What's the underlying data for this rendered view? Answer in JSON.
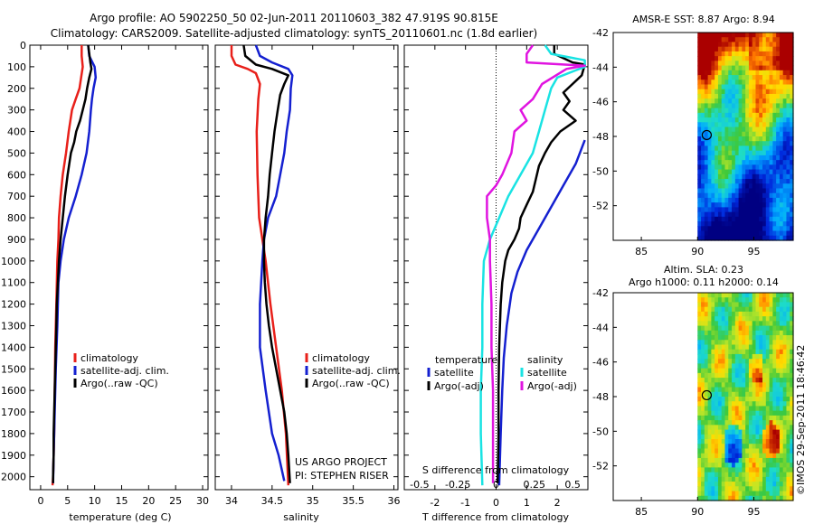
{
  "header": {
    "line1": "Argo profile: AO 5902250_50 02-Jun-2011 20110603_382 47.919S 90.815E",
    "line2": "Climatology: CARS2009. Satellite-adjusted climatology: synTS_20110601.nc (1.8d earlier)"
  },
  "colors": {
    "climatology": "#e8201a",
    "satellite": "#1420d0",
    "argo": "#000000",
    "sat_diff": "#19e3e3",
    "argo_diff": "#e014e0"
  },
  "chart_data": [
    {
      "type": "line",
      "id": "temperature",
      "xlabel": "temperature (deg C)",
      "xlim": [
        -2,
        31
      ],
      "ylim": [
        2060,
        0
      ],
      "xticks": [
        0,
        5,
        10,
        15,
        20,
        25,
        30
      ],
      "xtick_labels": [
        "0",
        "5",
        "10",
        "15",
        "20",
        "25",
        "30"
      ],
      "yticks": [
        0,
        100,
        200,
        300,
        400,
        500,
        600,
        700,
        800,
        900,
        1000,
        1100,
        1200,
        1300,
        1400,
        1500,
        1600,
        1700,
        1800,
        1900,
        2000
      ],
      "ytick_labels": [
        "0",
        "100",
        "200",
        "300",
        "400",
        "500",
        "600",
        "700",
        "800",
        "900",
        "1000",
        "1100",
        "1200",
        "1300",
        "1400",
        "1500",
        "1600",
        "1700",
        "1800",
        "1900",
        "2000"
      ],
      "legend": [
        "climatology",
        "satellite-adj. clim.",
        "Argo(..raw -QC)"
      ],
      "series": [
        {
          "name": "climatology",
          "color_key": "climatology",
          "points": [
            [
              7.6,
              0
            ],
            [
              7.6,
              50
            ],
            [
              7.8,
              100
            ],
            [
              7.5,
              150
            ],
            [
              7.2,
              200
            ],
            [
              6.5,
              250
            ],
            [
              5.8,
              300
            ],
            [
              5.2,
              400
            ],
            [
              4.7,
              500
            ],
            [
              4.1,
              600
            ],
            [
              3.7,
              700
            ],
            [
              3.4,
              800
            ],
            [
              3.3,
              900
            ],
            [
              3.1,
              1000
            ],
            [
              2.9,
              1200
            ],
            [
              2.7,
              1400
            ],
            [
              2.6,
              1600
            ],
            [
              2.5,
              1800
            ],
            [
              2.3,
              2000
            ],
            [
              2.2,
              2040
            ]
          ]
        },
        {
          "name": "satellite-adj. clim.",
          "color_key": "satellite",
          "points": [
            [
              8.8,
              0
            ],
            [
              9.0,
              50
            ],
            [
              10.0,
              100
            ],
            [
              10.2,
              150
            ],
            [
              9.8,
              200
            ],
            [
              9.5,
              250
            ],
            [
              9.3,
              300
            ],
            [
              9.0,
              400
            ],
            [
              8.5,
              500
            ],
            [
              7.6,
              600
            ],
            [
              6.5,
              700
            ],
            [
              5.2,
              800
            ],
            [
              4.3,
              900
            ],
            [
              3.7,
              1000
            ],
            [
              3.3,
              1100
            ],
            [
              3.1,
              1300
            ],
            [
              2.8,
              1500
            ],
            [
              2.6,
              1700
            ],
            [
              2.4,
              1900
            ],
            [
              2.3,
              2030
            ]
          ]
        },
        {
          "name": "Argo(..raw -QC)",
          "color_key": "argo",
          "points": [
            [
              8.8,
              0
            ],
            [
              9.0,
              40
            ],
            [
              9.2,
              80
            ],
            [
              9.4,
              110
            ],
            [
              9.0,
              150
            ],
            [
              8.6,
              200
            ],
            [
              8.3,
              250
            ],
            [
              7.8,
              300
            ],
            [
              7.3,
              350
            ],
            [
              6.6,
              400
            ],
            [
              6.2,
              450
            ],
            [
              5.6,
              500
            ],
            [
              5.0,
              600
            ],
            [
              4.5,
              700
            ],
            [
              4.1,
              800
            ],
            [
              3.7,
              900
            ],
            [
              3.4,
              1000
            ],
            [
              3.2,
              1100
            ],
            [
              3.0,
              1200
            ],
            [
              2.9,
              1300
            ],
            [
              2.8,
              1400
            ],
            [
              2.7,
              1500
            ],
            [
              2.6,
              1600
            ],
            [
              2.5,
              1700
            ],
            [
              2.4,
              1800
            ],
            [
              2.4,
              1900
            ],
            [
              2.3,
              2000
            ],
            [
              2.3,
              2030
            ]
          ]
        }
      ]
    },
    {
      "type": "line",
      "id": "salinity",
      "xlabel": "salinity",
      "xlim": [
        33.8,
        36.05
      ],
      "ylim": [
        2060,
        0
      ],
      "xticks": [
        34,
        34.5,
        35,
        35.5,
        36
      ],
      "xtick_labels": [
        "34",
        "34.5",
        "35",
        "35.5",
        "36"
      ],
      "legend": [
        "climatology",
        "satellite-adj. clim.",
        "Argo(..raw -QC)"
      ],
      "credits": [
        "US ARGO PROJECT",
        "PI: STEPHEN RISER"
      ],
      "series": [
        {
          "name": "climatology",
          "color_key": "climatology",
          "points": [
            [
              34.0,
              0
            ],
            [
              34.0,
              50
            ],
            [
              34.05,
              90
            ],
            [
              34.2,
              110
            ],
            [
              34.3,
              130
            ],
            [
              34.35,
              180
            ],
            [
              34.33,
              250
            ],
            [
              34.31,
              400
            ],
            [
              34.32,
              600
            ],
            [
              34.34,
              800
            ],
            [
              34.38,
              900
            ],
            [
              34.42,
              1000
            ],
            [
              34.48,
              1200
            ],
            [
              34.55,
              1400
            ],
            [
              34.62,
              1600
            ],
            [
              34.67,
              1800
            ],
            [
              34.7,
              2040
            ]
          ]
        },
        {
          "name": "satellite-adj. clim.",
          "color_key": "satellite",
          "points": [
            [
              34.3,
              0
            ],
            [
              34.35,
              50
            ],
            [
              34.5,
              80
            ],
            [
              34.7,
              110
            ],
            [
              34.75,
              140
            ],
            [
              34.73,
              200
            ],
            [
              34.72,
              300
            ],
            [
              34.68,
              400
            ],
            [
              34.65,
              500
            ],
            [
              34.6,
              600
            ],
            [
              34.55,
              700
            ],
            [
              34.45,
              800
            ],
            [
              34.4,
              900
            ],
            [
              34.38,
              1000
            ],
            [
              34.35,
              1200
            ],
            [
              34.35,
              1400
            ],
            [
              34.42,
              1600
            ],
            [
              34.5,
              1800
            ],
            [
              34.58,
              1900
            ],
            [
              34.65,
              2020
            ]
          ]
        },
        {
          "name": "Argo(..raw -QC)",
          "color_key": "argo",
          "points": [
            [
              34.15,
              0
            ],
            [
              34.17,
              50
            ],
            [
              34.3,
              90
            ],
            [
              34.5,
              110
            ],
            [
              34.7,
              140
            ],
            [
              34.65,
              180
            ],
            [
              34.6,
              230
            ],
            [
              34.57,
              300
            ],
            [
              34.55,
              350
            ],
            [
              34.53,
              400
            ],
            [
              34.5,
              500
            ],
            [
              34.47,
              600
            ],
            [
              34.45,
              700
            ],
            [
              34.42,
              800
            ],
            [
              34.4,
              900
            ],
            [
              34.4,
              1000
            ],
            [
              34.41,
              1100
            ],
            [
              34.43,
              1200
            ],
            [
              34.46,
              1300
            ],
            [
              34.5,
              1400
            ],
            [
              34.55,
              1500
            ],
            [
              34.6,
              1600
            ],
            [
              34.65,
              1700
            ],
            [
              34.68,
              1800
            ],
            [
              34.7,
              1900
            ],
            [
              34.72,
              2030
            ]
          ]
        }
      ]
    },
    {
      "type": "line",
      "id": "difference",
      "xlabel": "T difference from climatology",
      "xlabel2": "S difference from climatology",
      "xlim": [
        -3.0,
        3.0
      ],
      "ylim": [
        2060,
        0
      ],
      "xticks": [
        -2,
        -1,
        0,
        1,
        2
      ],
      "xtick_labels": [
        "-2",
        "-1",
        "0",
        "1",
        "2"
      ],
      "sticks": [
        "-0.5",
        "-0.25",
        "0",
        "0.25",
        "0.5"
      ],
      "legend": {
        "temperature_title": "temperature",
        "salinity_title": "salinity",
        "entries": [
          "satellite",
          "Argo(-adj)",
          "satellite",
          "Argo(-adj)"
        ]
      },
      "series": [
        {
          "name": "T satellite",
          "color_key": "satellite",
          "points": [
            [
              2.9,
              440
            ],
            [
              2.6,
              550
            ],
            [
              2.2,
              650
            ],
            [
              1.8,
              750
            ],
            [
              1.4,
              850
            ],
            [
              1.0,
              950
            ],
            [
              0.7,
              1050
            ],
            [
              0.5,
              1150
            ],
            [
              0.35,
              1300
            ],
            [
              0.25,
              1450
            ],
            [
              0.2,
              1600
            ],
            [
              0.15,
              1800
            ],
            [
              0.1,
              2040
            ]
          ]
        },
        {
          "name": "T Argo(-adj)",
          "color_key": "argo",
          "points": [
            [
              1.9,
              0
            ],
            [
              1.9,
              40
            ],
            [
              2.5,
              80
            ],
            [
              2.9,
              90
            ],
            [
              2.8,
              140
            ],
            [
              2.2,
              220
            ],
            [
              2.4,
              260
            ],
            [
              2.2,
              300
            ],
            [
              2.6,
              350
            ],
            [
              2.1,
              400
            ],
            [
              1.8,
              450
            ],
            [
              1.6,
              500
            ],
            [
              1.4,
              560
            ],
            [
              1.3,
              620
            ],
            [
              1.2,
              680
            ],
            [
              1.0,
              740
            ],
            [
              0.8,
              800
            ],
            [
              0.75,
              850
            ],
            [
              0.6,
              900
            ],
            [
              0.4,
              950
            ],
            [
              0.3,
              1000
            ],
            [
              0.2,
              1100
            ],
            [
              0.15,
              1200
            ],
            [
              0.1,
              1400
            ],
            [
              0.08,
              1600
            ],
            [
              0.08,
              1800
            ],
            [
              0.05,
              2030
            ]
          ]
        },
        {
          "name": "S satellite",
          "color_key": "sat_diff",
          "points": [
            [
              1.6,
              0
            ],
            [
              1.8,
              40
            ],
            [
              2.9,
              70
            ],
            [
              2.9,
              100
            ],
            [
              2.0,
              150
            ],
            [
              1.8,
              200
            ],
            [
              1.6,
              300
            ],
            [
              1.4,
              400
            ],
            [
              1.2,
              500
            ],
            [
              0.8,
              600
            ],
            [
              0.4,
              700
            ],
            [
              0.1,
              800
            ],
            [
              -0.2,
              900
            ],
            [
              -0.4,
              1000
            ],
            [
              -0.45,
              1200
            ],
            [
              -0.45,
              1400
            ],
            [
              -0.5,
              1600
            ],
            [
              -0.5,
              1800
            ],
            [
              -0.45,
              2040
            ]
          ]
        },
        {
          "name": "S Argo(-adj)",
          "color_key": "argo_diff",
          "points": [
            [
              1.2,
              0
            ],
            [
              1.0,
              40
            ],
            [
              1.0,
              80
            ],
            [
              2.9,
              95
            ],
            [
              2.3,
              110
            ],
            [
              1.5,
              180
            ],
            [
              1.2,
              250
            ],
            [
              0.8,
              300
            ],
            [
              1.0,
              350
            ],
            [
              0.6,
              400
            ],
            [
              0.5,
              500
            ],
            [
              0.2,
              600
            ],
            [
              0.0,
              650
            ],
            [
              -0.3,
              700
            ],
            [
              -0.3,
              800
            ],
            [
              -0.2,
              900
            ],
            [
              -0.2,
              1000
            ],
            [
              -0.15,
              1200
            ],
            [
              -0.15,
              1400
            ],
            [
              -0.1,
              1600
            ],
            [
              -0.1,
              1800
            ],
            [
              -0.1,
              2030
            ]
          ]
        }
      ]
    },
    {
      "type": "heatmap",
      "id": "sst_map",
      "title": "AMSR-E SST: 8.87 Argo: 8.94",
      "xlim": [
        82.5,
        98.5
      ],
      "ylim": [
        -54,
        -42
      ],
      "xticks": [
        85,
        90,
        95
      ],
      "yticks": [
        -42,
        -44,
        -46,
        -48,
        -50,
        -52
      ],
      "ytick_labels": [
        "-42",
        "-44",
        "-46",
        "-48",
        "-50",
        "-52"
      ],
      "data_extent": {
        "lon_min": 90,
        "lon_max": 98.5
      },
      "argo_position": [
        90.815,
        -47.919
      ]
    },
    {
      "type": "heatmap",
      "id": "sla_map",
      "title1": "Altim. SLA: 0.23",
      "title2": "Argo h1000: 0.11 h2000: 0.14",
      "xlim": [
        82.5,
        98.5
      ],
      "ylim": [
        -54,
        -42
      ],
      "xticks": [
        85,
        90,
        95
      ],
      "yticks": [
        -42,
        -44,
        -46,
        -48,
        -50,
        -52
      ],
      "ytick_labels": [
        "-42",
        "-44",
        "-46",
        "-48",
        "-50",
        "-52"
      ],
      "data_extent": {
        "lon_min": 90,
        "lon_max": 98.5
      },
      "argo_position": [
        90.815,
        -47.919
      ],
      "stamp": "©IMOS 29-Sep-2011 18:46:42"
    }
  ]
}
